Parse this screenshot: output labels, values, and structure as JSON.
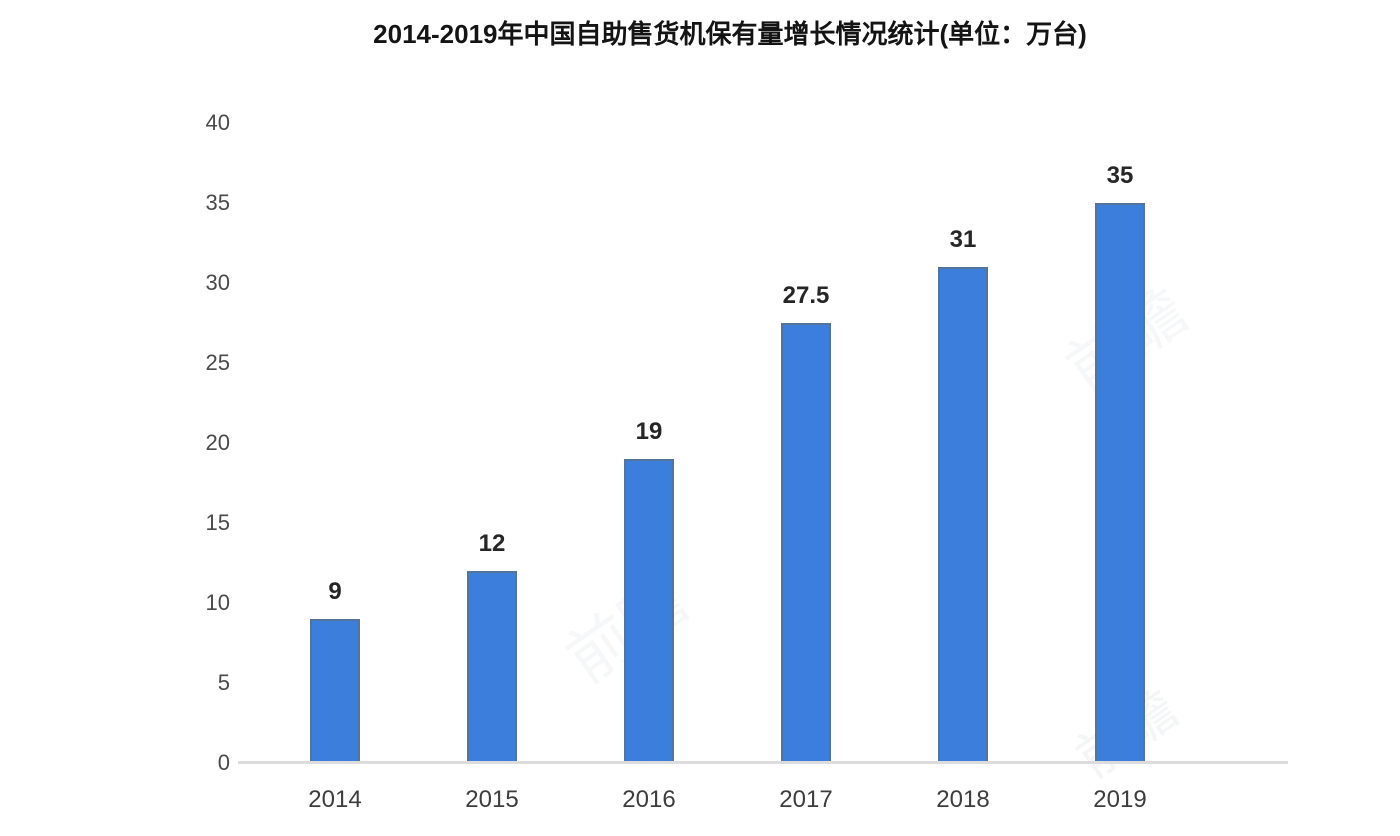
{
  "chart_data": {
    "type": "bar",
    "title": "2014-2019年中国自助售货机保有量增长情况统计(单位：万台)",
    "categories": [
      "2014",
      "2015",
      "2016",
      "2017",
      "2018",
      "2019"
    ],
    "values": [
      9,
      12,
      19,
      27.5,
      31,
      35
    ],
    "value_labels": [
      "9",
      "12",
      "19",
      "27.5",
      "31",
      "35"
    ],
    "series_name": "自助售货机保有量",
    "xlabel": "",
    "ylabel": "",
    "ylim": [
      0,
      40
    ],
    "ytick_step": 5,
    "yticks": [
      "0",
      "5",
      "10",
      "15",
      "20",
      "25",
      "30",
      "35",
      "40"
    ],
    "grid": false,
    "legend_position": "none",
    "bar_color": "#3c7edc",
    "bar_border_color": "#54749c",
    "axis_line_color": "#dcdcdc"
  },
  "watermark": {
    "text": "前瞻"
  }
}
